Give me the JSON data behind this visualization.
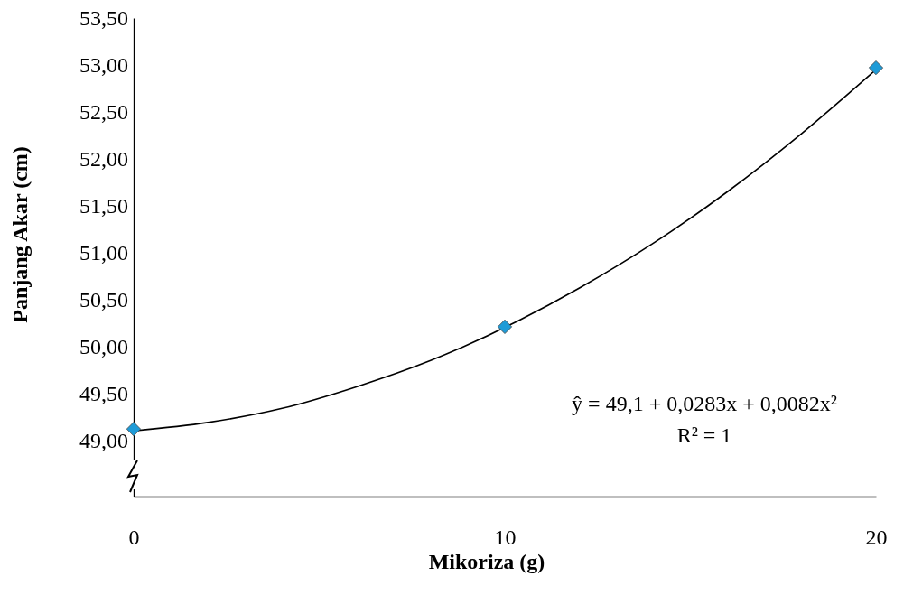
{
  "chart_data": {
    "type": "scatter",
    "xlabel": "Mikoriza (g)",
    "ylabel": "Panjang Akar (cm)",
    "xlim": [
      0,
      20
    ],
    "xticks": [
      0,
      10,
      20
    ],
    "ylim": [
      48.4,
      53.5
    ],
    "yticks": [
      {
        "value": 49,
        "label": "49,00"
      },
      {
        "value": 49.5,
        "label": "49,50"
      },
      {
        "value": 50,
        "label": "50,00"
      },
      {
        "value": 50.5,
        "label": "50,50"
      },
      {
        "value": 51,
        "label": "51,00"
      },
      {
        "value": 51.5,
        "label": "51,50"
      },
      {
        "value": 52,
        "label": "52,00"
      },
      {
        "value": 52.5,
        "label": "52,50"
      },
      {
        "value": 53,
        "label": "53,00"
      },
      {
        "value": 53.5,
        "label": "53,50"
      }
    ],
    "grid": false,
    "series": [
      {
        "type": "line",
        "marker": "none",
        "color": "#000000",
        "x": [
          0,
          2,
          4,
          6,
          8,
          12,
          14,
          16,
          18,
          20
        ],
        "values": [
          49.1,
          49.19,
          49.34,
          49.57,
          49.85,
          50.62,
          51.1,
          51.65,
          52.27,
          52.95
        ]
      },
      {
        "marker": "diamond",
        "color": "#1f9bd7",
        "x": [
          0,
          10,
          20
        ],
        "values": [
          49.12,
          50.21,
          52.97
        ]
      }
    ],
    "annotations": [
      "ŷ = 49,1 + 0,0283x + 0,0082x²",
      "R² = 1"
    ]
  }
}
